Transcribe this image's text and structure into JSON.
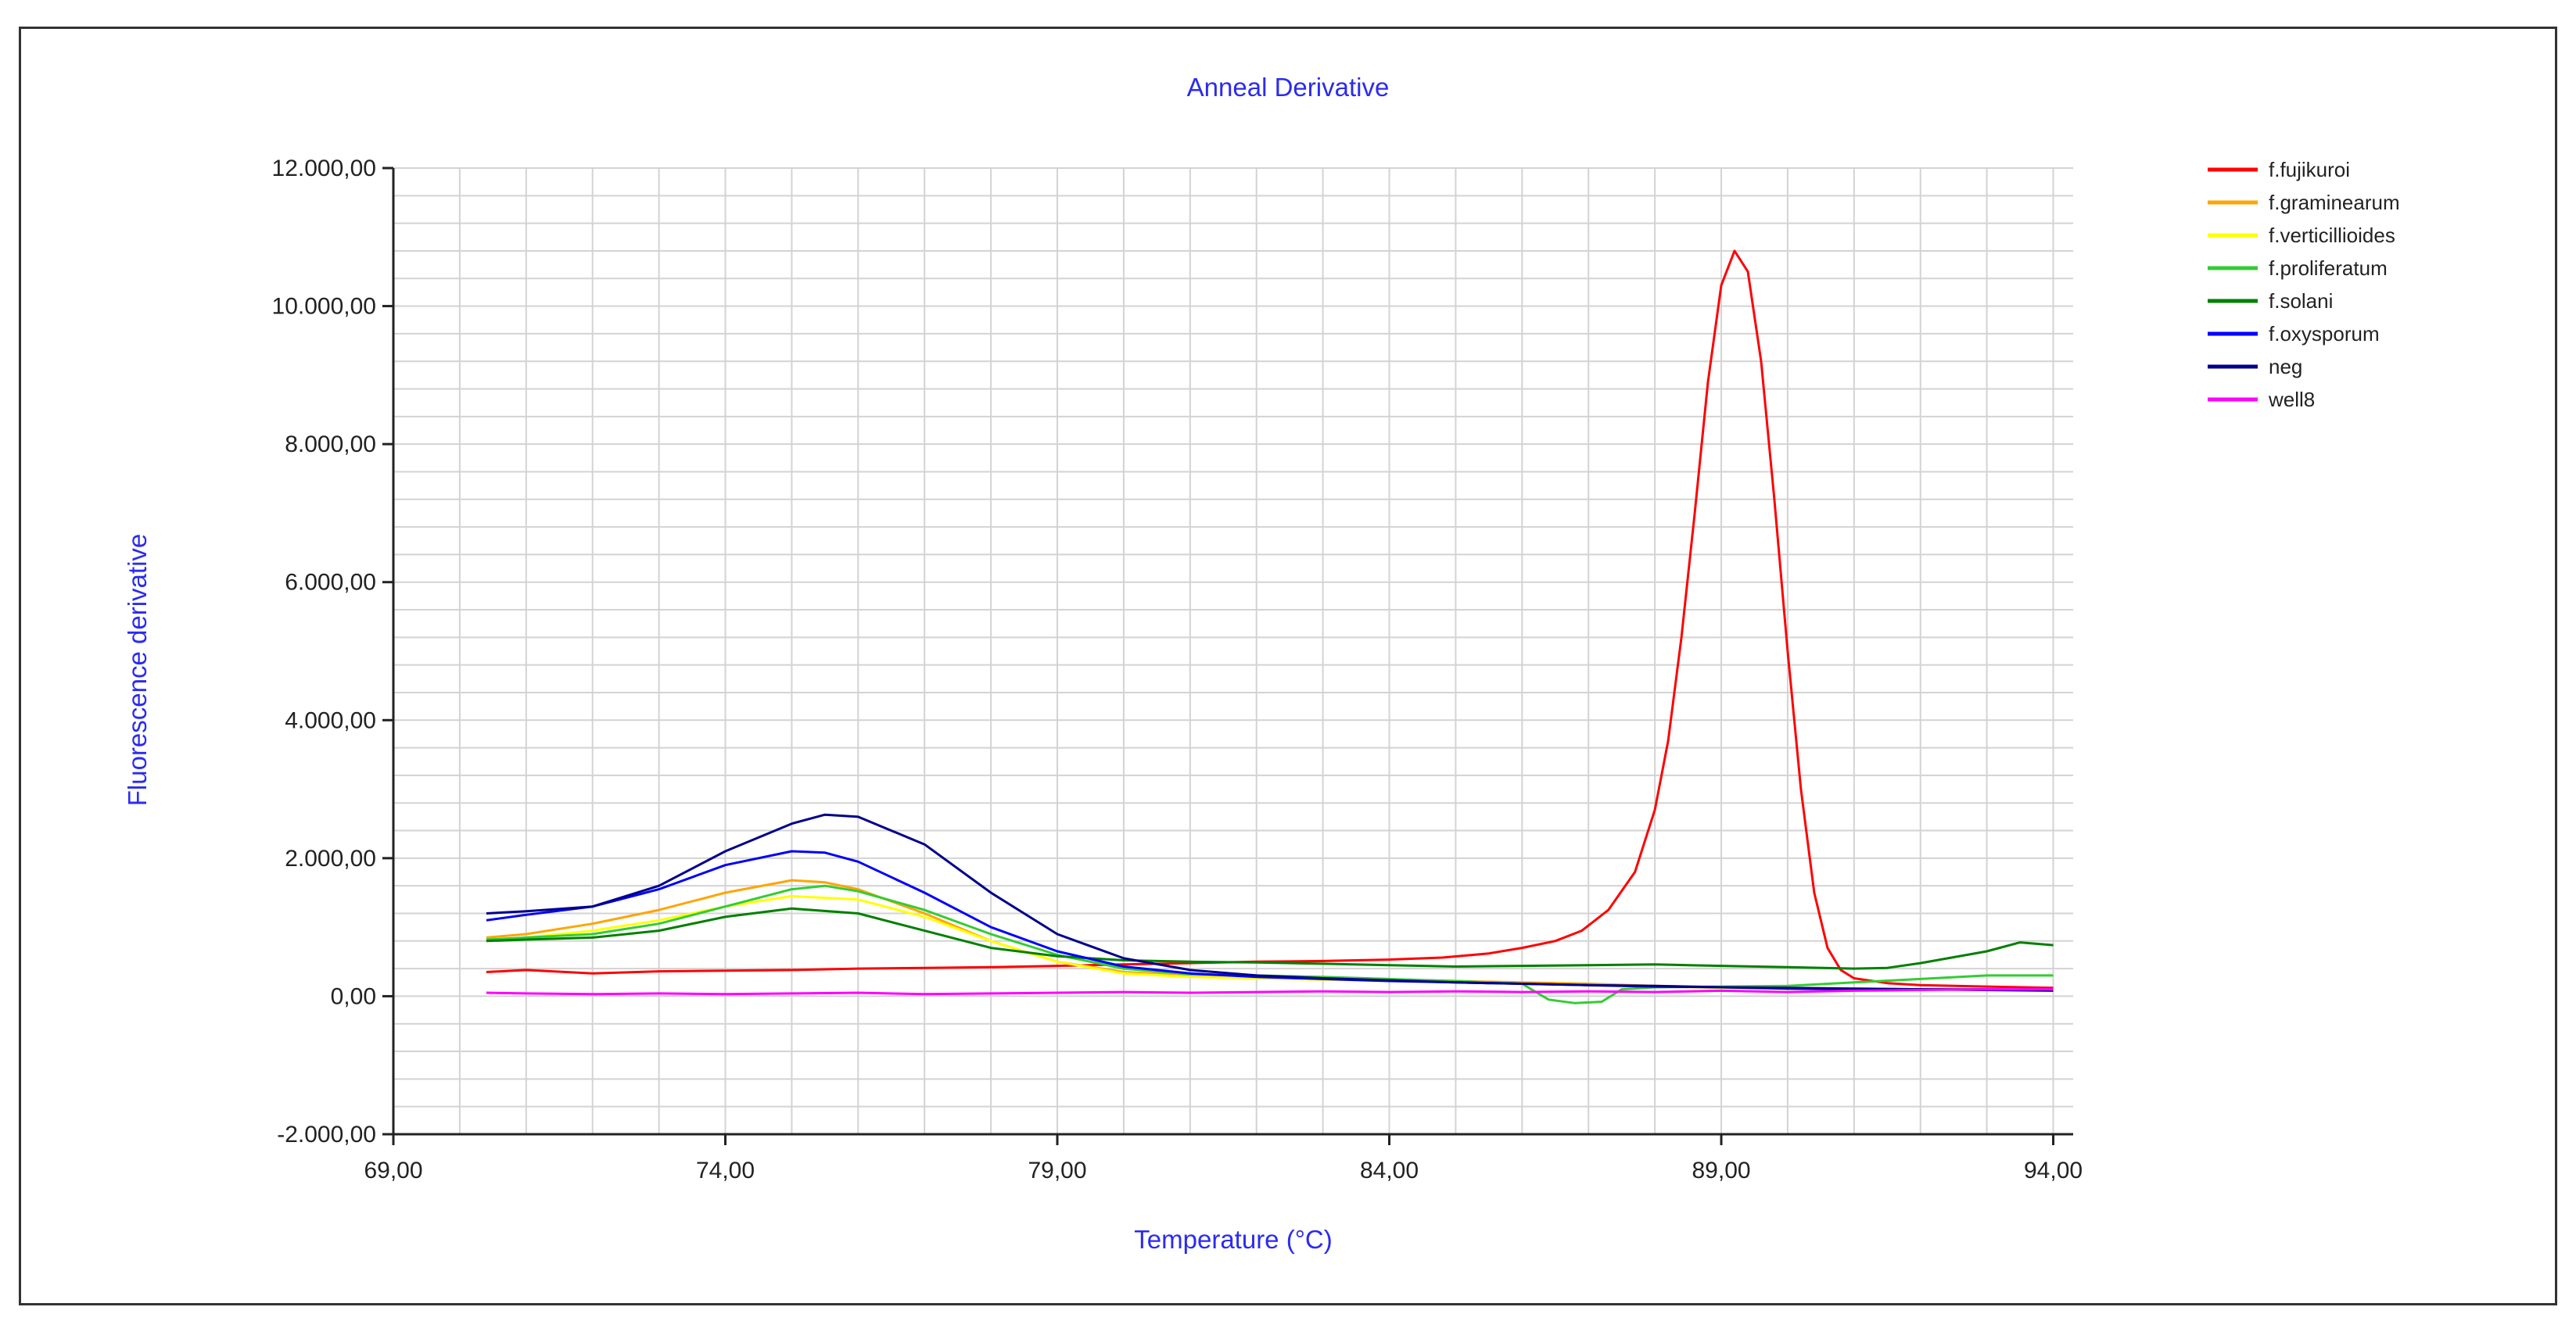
{
  "chart_data": {
    "type": "line",
    "title": "Anneal Derivative",
    "xlabel": "Temperature (°C)",
    "ylabel": "Fluorescence derivative",
    "xlim": [
      69,
      94.3
    ],
    "ylim": [
      -2000,
      12000
    ],
    "x_ticks": [
      69,
      74,
      79,
      84,
      89,
      94
    ],
    "x_tick_labels": [
      "69,00",
      "74,00",
      "79,00",
      "84,00",
      "89,00",
      "94,00"
    ],
    "y_ticks": [
      -2000,
      0,
      2000,
      4000,
      6000,
      8000,
      10000,
      12000
    ],
    "y_tick_labels": [
      "-2.000,00",
      "0,00",
      "2.000,00",
      "4.000,00",
      "6.000,00",
      "8.000,00",
      "10.000,00",
      "12.000,00"
    ],
    "grid": true,
    "legend_position": "top-right",
    "series": [
      {
        "name": "f.fujikuroi",
        "color": "#ff0000",
        "points": [
          [
            70.4,
            350
          ],
          [
            71.0,
            380
          ],
          [
            72.0,
            330
          ],
          [
            73.0,
            360
          ],
          [
            74.0,
            370
          ],
          [
            75.0,
            380
          ],
          [
            76.0,
            400
          ],
          [
            77.0,
            410
          ],
          [
            78.0,
            420
          ],
          [
            79.0,
            440
          ],
          [
            80.0,
            460
          ],
          [
            81.0,
            480
          ],
          [
            82.0,
            500
          ],
          [
            83.0,
            510
          ],
          [
            84.0,
            530
          ],
          [
            84.8,
            560
          ],
          [
            85.5,
            620
          ],
          [
            86.0,
            700
          ],
          [
            86.5,
            800
          ],
          [
            86.9,
            950
          ],
          [
            87.3,
            1250
          ],
          [
            87.7,
            1800
          ],
          [
            88.0,
            2700
          ],
          [
            88.2,
            3700
          ],
          [
            88.4,
            5200
          ],
          [
            88.6,
            7000
          ],
          [
            88.8,
            8900
          ],
          [
            89.0,
            10300
          ],
          [
            89.2,
            10800
          ],
          [
            89.4,
            10500
          ],
          [
            89.6,
            9200
          ],
          [
            89.8,
            7200
          ],
          [
            90.0,
            5000
          ],
          [
            90.2,
            3000
          ],
          [
            90.4,
            1500
          ],
          [
            90.6,
            700
          ],
          [
            90.8,
            380
          ],
          [
            91.0,
            260
          ],
          [
            91.5,
            190
          ],
          [
            92.0,
            160
          ],
          [
            93.0,
            140
          ],
          [
            94.0,
            120
          ]
        ]
      },
      {
        "name": "f.graminearum",
        "color": "#ffa500",
        "points": [
          [
            70.4,
            850
          ],
          [
            71.0,
            900
          ],
          [
            72.0,
            1050
          ],
          [
            73.0,
            1250
          ],
          [
            74.0,
            1500
          ],
          [
            75.0,
            1680
          ],
          [
            75.5,
            1650
          ],
          [
            76.0,
            1550
          ],
          [
            77.0,
            1200
          ],
          [
            78.0,
            800
          ],
          [
            79.0,
            500
          ],
          [
            80.0,
            350
          ],
          [
            81.0,
            300
          ],
          [
            82.0,
            280
          ],
          [
            83.0,
            260
          ],
          [
            84.0,
            240
          ],
          [
            85.0,
            220
          ],
          [
            86.0,
            200
          ],
          [
            87.0,
            180
          ],
          [
            88.0,
            150
          ],
          [
            89.0,
            130
          ],
          [
            90.0,
            120
          ],
          [
            91.0,
            110
          ],
          [
            92.0,
            100
          ],
          [
            93.0,
            90
          ],
          [
            94.0,
            90
          ]
        ]
      },
      {
        "name": "f.verticillioides",
        "color": "#ffff00",
        "points": [
          [
            70.4,
            800
          ],
          [
            71.0,
            850
          ],
          [
            72.0,
            950
          ],
          [
            73.0,
            1100
          ],
          [
            74.0,
            1300
          ],
          [
            75.0,
            1450
          ],
          [
            76.0,
            1400
          ],
          [
            77.0,
            1150
          ],
          [
            78.0,
            800
          ],
          [
            79.0,
            500
          ],
          [
            80.0,
            330
          ],
          [
            81.0,
            280
          ],
          [
            82.0,
            260
          ],
          [
            83.0,
            240
          ],
          [
            84.0,
            220
          ],
          [
            85.0,
            200
          ],
          [
            86.0,
            180
          ],
          [
            87.0,
            160
          ],
          [
            88.0,
            140
          ],
          [
            89.0,
            120
          ],
          [
            90.0,
            110
          ],
          [
            91.0,
            100
          ],
          [
            92.0,
            100
          ],
          [
            93.0,
            90
          ],
          [
            94.0,
            90
          ]
        ]
      },
      {
        "name": "f.proliferatum",
        "color": "#33cc33",
        "points": [
          [
            70.4,
            820
          ],
          [
            71.0,
            850
          ],
          [
            72.0,
            900
          ],
          [
            73.0,
            1050
          ],
          [
            74.0,
            1300
          ],
          [
            75.0,
            1550
          ],
          [
            75.5,
            1600
          ],
          [
            76.0,
            1520
          ],
          [
            77.0,
            1250
          ],
          [
            78.0,
            900
          ],
          [
            79.0,
            600
          ],
          [
            80.0,
            400
          ],
          [
            81.0,
            320
          ],
          [
            82.0,
            300
          ],
          [
            83.0,
            280
          ],
          [
            84.0,
            250
          ],
          [
            85.0,
            220
          ],
          [
            86.0,
            180
          ],
          [
            86.4,
            -50
          ],
          [
            86.8,
            -100
          ],
          [
            87.2,
            -80
          ],
          [
            87.5,
            100
          ],
          [
            88.0,
            130
          ],
          [
            89.0,
            140
          ],
          [
            90.0,
            150
          ],
          [
            91.0,
            200
          ],
          [
            92.0,
            250
          ],
          [
            93.0,
            300
          ],
          [
            94.0,
            300
          ]
        ]
      },
      {
        "name": "f.solani",
        "color": "#008000",
        "points": [
          [
            70.4,
            800
          ],
          [
            71.0,
            820
          ],
          [
            72.0,
            850
          ],
          [
            73.0,
            950
          ],
          [
            74.0,
            1150
          ],
          [
            75.0,
            1270
          ],
          [
            76.0,
            1200
          ],
          [
            77.0,
            950
          ],
          [
            78.0,
            700
          ],
          [
            79.0,
            580
          ],
          [
            80.0,
            520
          ],
          [
            81.0,
            500
          ],
          [
            82.0,
            490
          ],
          [
            83.0,
            470
          ],
          [
            84.0,
            450
          ],
          [
            85.0,
            430
          ],
          [
            86.0,
            440
          ],
          [
            87.0,
            450
          ],
          [
            88.0,
            460
          ],
          [
            89.0,
            440
          ],
          [
            90.0,
            420
          ],
          [
            91.0,
            400
          ],
          [
            91.5,
            410
          ],
          [
            92.0,
            480
          ],
          [
            93.0,
            650
          ],
          [
            93.5,
            780
          ],
          [
            94.0,
            740
          ]
        ]
      },
      {
        "name": "f.oxysporum",
        "color": "#0000ff",
        "points": [
          [
            70.4,
            1100
          ],
          [
            71.0,
            1180
          ],
          [
            72.0,
            1300
          ],
          [
            73.0,
            1550
          ],
          [
            74.0,
            1900
          ],
          [
            75.0,
            2100
          ],
          [
            75.5,
            2080
          ],
          [
            76.0,
            1950
          ],
          [
            77.0,
            1500
          ],
          [
            78.0,
            1000
          ],
          [
            79.0,
            650
          ],
          [
            80.0,
            430
          ],
          [
            81.0,
            330
          ],
          [
            82.0,
            280
          ],
          [
            83.0,
            250
          ],
          [
            84.0,
            220
          ],
          [
            85.0,
            200
          ],
          [
            86.0,
            180
          ],
          [
            87.0,
            160
          ],
          [
            88.0,
            140
          ],
          [
            89.0,
            130
          ],
          [
            90.0,
            110
          ],
          [
            91.0,
            100
          ],
          [
            92.0,
            100
          ],
          [
            93.0,
            90
          ],
          [
            94.0,
            80
          ]
        ]
      },
      {
        "name": "neg",
        "color": "#00008b",
        "points": [
          [
            70.4,
            1200
          ],
          [
            71.0,
            1230
          ],
          [
            72.0,
            1300
          ],
          [
            73.0,
            1600
          ],
          [
            74.0,
            2100
          ],
          [
            75.0,
            2500
          ],
          [
            75.5,
            2630
          ],
          [
            76.0,
            2600
          ],
          [
            77.0,
            2200
          ],
          [
            78.0,
            1500
          ],
          [
            79.0,
            900
          ],
          [
            80.0,
            550
          ],
          [
            81.0,
            380
          ],
          [
            82.0,
            300
          ],
          [
            83.0,
            260
          ],
          [
            84.0,
            230
          ],
          [
            85.0,
            200
          ],
          [
            86.0,
            180
          ],
          [
            87.0,
            160
          ],
          [
            88.0,
            150
          ],
          [
            89.0,
            130
          ],
          [
            90.0,
            120
          ],
          [
            91.0,
            110
          ],
          [
            92.0,
            100
          ],
          [
            93.0,
            100
          ],
          [
            94.0,
            90
          ]
        ]
      },
      {
        "name": "well8",
        "color": "#ff00ff",
        "points": [
          [
            70.4,
            50
          ],
          [
            71.0,
            40
          ],
          [
            72.0,
            30
          ],
          [
            73.0,
            40
          ],
          [
            74.0,
            30
          ],
          [
            75.0,
            40
          ],
          [
            76.0,
            50
          ],
          [
            77.0,
            30
          ],
          [
            78.0,
            40
          ],
          [
            79.0,
            50
          ],
          [
            80.0,
            60
          ],
          [
            81.0,
            50
          ],
          [
            82.0,
            60
          ],
          [
            83.0,
            70
          ],
          [
            84.0,
            60
          ],
          [
            85.0,
            70
          ],
          [
            86.0,
            60
          ],
          [
            87.0,
            70
          ],
          [
            88.0,
            60
          ],
          [
            89.0,
            80
          ],
          [
            90.0,
            60
          ],
          [
            91.0,
            80
          ],
          [
            92.0,
            90
          ],
          [
            93.0,
            100
          ],
          [
            94.0,
            100
          ]
        ]
      }
    ]
  }
}
